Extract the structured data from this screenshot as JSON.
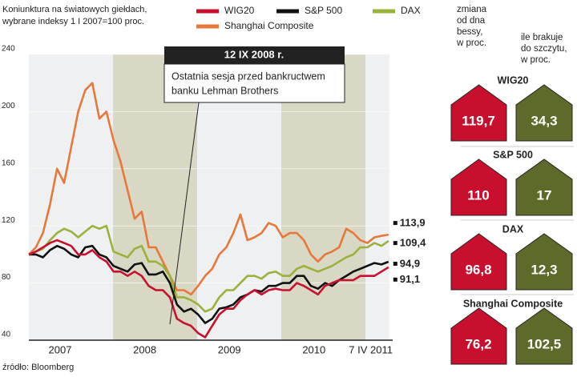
{
  "chart_data": {
    "type": "line",
    "title": [
      "Koniunktura na światowych giełdach,",
      "wybrane indeksy 1 I 2007=100 proc."
    ],
    "source": "źródło: Bloomberg",
    "categories": [
      null,
      null,
      null,
      null,
      null,
      "2007",
      null,
      null,
      null,
      null,
      null,
      null,
      null,
      null,
      null,
      null,
      null,
      "2008",
      null,
      null,
      null,
      null,
      null,
      null,
      null,
      null,
      null,
      null,
      null,
      "2009",
      null,
      null,
      null,
      null,
      null,
      null,
      null,
      null,
      null,
      null,
      null,
      "2010",
      null,
      null,
      null,
      null,
      null,
      null,
      null,
      null,
      null,
      "7 IV 2011"
    ],
    "ylim": [
      40,
      240
    ],
    "yticks": [
      40,
      80,
      120,
      160,
      200,
      240
    ],
    "grid": true,
    "annotation": {
      "title": "12 IX 2008 r.",
      "lines": [
        "Ostatnia sesja przed bankructwem",
        "banku Lehman Brothers"
      ]
    },
    "series": [
      {
        "name": "WIG20",
        "color": "#c8102e",
        "end_label": "91,1",
        "values": [
          100,
          102,
          105,
          108,
          110,
          108,
          106,
          100,
          100,
          103,
          98,
          95,
          88,
          88,
          85,
          88,
          85,
          78,
          75,
          75,
          70,
          55,
          52,
          50,
          45,
          42,
          50,
          58,
          62,
          62,
          68,
          72,
          75,
          72,
          75,
          76,
          75,
          75,
          80,
          78,
          75,
          72,
          78,
          80,
          82,
          82,
          82,
          85,
          85,
          85,
          88,
          91.1
        ]
      },
      {
        "name": "S&P 500",
        "color": "#111111",
        "end_label": "94,9",
        "values": [
          100,
          100,
          98,
          103,
          106,
          104,
          100,
          98,
          105,
          106,
          100,
          98,
          92,
          90,
          88,
          93,
          94,
          86,
          86,
          88,
          80,
          65,
          60,
          62,
          58,
          52,
          55,
          62,
          63,
          65,
          70,
          72,
          75,
          74,
          78,
          78,
          80,
          80,
          85,
          85,
          78,
          76,
          80,
          78,
          82,
          85,
          88,
          90,
          92,
          94,
          93,
          94.9
        ]
      },
      {
        "name": "DAX",
        "color": "#9bb23a",
        "end_label": "109,4",
        "values": [
          100,
          102,
          104,
          110,
          115,
          118,
          116,
          112,
          116,
          120,
          118,
          120,
          102,
          100,
          98,
          104,
          106,
          95,
          95,
          92,
          85,
          70,
          70,
          68,
          65,
          60,
          62,
          70,
          75,
          75,
          80,
          85,
          85,
          83,
          87,
          88,
          85,
          85,
          90,
          92,
          90,
          88,
          90,
          92,
          95,
          98,
          100,
          105,
          105,
          108,
          106,
          109.4
        ]
      },
      {
        "name": "Shanghai Composite",
        "color": "#e8773a",
        "end_label": "113,9",
        "values": [
          100,
          105,
          115,
          135,
          160,
          150,
          175,
          200,
          215,
          220,
          195,
          200,
          180,
          165,
          145,
          125,
          130,
          105,
          105,
          95,
          85,
          75,
          75,
          72,
          78,
          85,
          90,
          100,
          105,
          115,
          128,
          110,
          112,
          115,
          122,
          120,
          112,
          115,
          115,
          110,
          100,
          95,
          100,
          102,
          105,
          118,
          115,
          110,
          108,
          112,
          113,
          113.9
        ]
      }
    ]
  },
  "panel": {
    "headers": [
      [
        "zmiana",
        "od dna",
        "bessy,",
        "w proc."
      ],
      [
        "ile brakuje",
        "do szczytu,",
        "w proc."
      ]
    ],
    "rows": [
      {
        "name": "WIG20",
        "from_low": "119,7",
        "to_peak": "34,3"
      },
      {
        "name": "S&P 500",
        "from_low": "110",
        "to_peak": "17"
      },
      {
        "name": "DAX",
        "from_low": "96,8",
        "to_peak": "12,3"
      },
      {
        "name": "Shanghai Composite",
        "from_low": "76,2",
        "to_peak": "102,5"
      }
    ]
  }
}
